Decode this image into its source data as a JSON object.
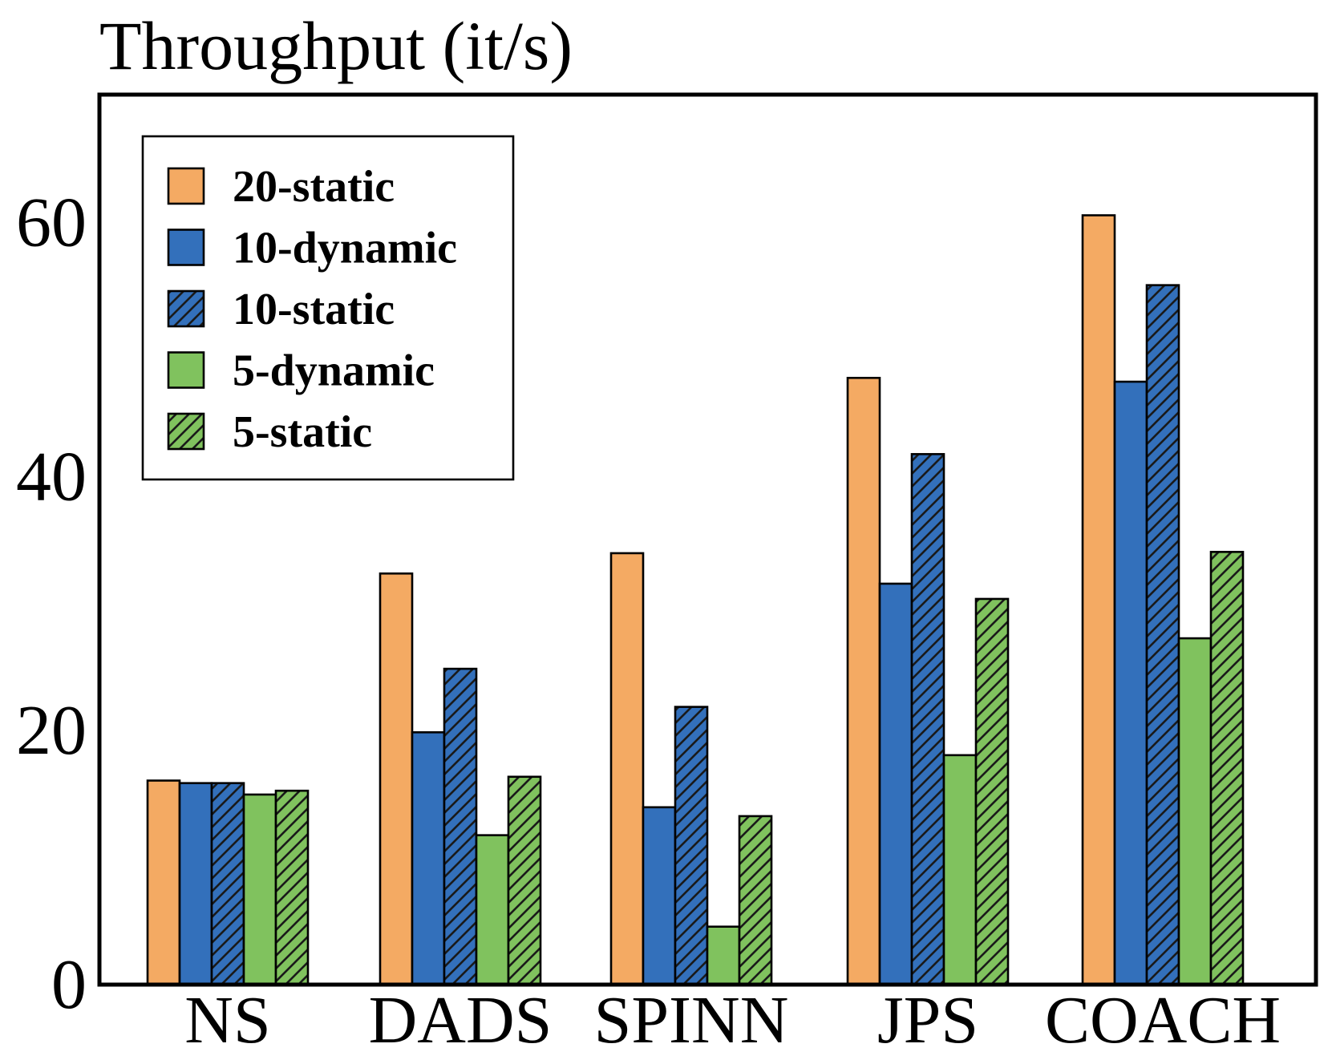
{
  "chart_data": {
    "type": "bar",
    "title": "Throughput (it/s)",
    "xlabel": "",
    "ylabel": "",
    "ylim": [
      0,
      70
    ],
    "yticks": [
      0,
      20,
      40,
      60
    ],
    "grid": false,
    "legend_position": "top-left",
    "categories": [
      "NS",
      "DADS",
      "SPINN",
      "JPS",
      "COACH"
    ],
    "series": [
      {
        "name": "20-static",
        "color": "#F4AA63",
        "hatch": false,
        "values": [
          16.0,
          32.3,
          33.9,
          47.7,
          60.5
        ]
      },
      {
        "name": "10-dynamic",
        "color": "#3370BB",
        "hatch": false,
        "values": [
          15.8,
          19.8,
          13.9,
          31.5,
          47.4
        ]
      },
      {
        "name": "10-static",
        "color": "#3370BB",
        "hatch": true,
        "values": [
          15.8,
          24.8,
          21.8,
          41.7,
          55.0
        ]
      },
      {
        "name": "5-dynamic",
        "color": "#80C25E",
        "hatch": false,
        "values": [
          14.9,
          11.7,
          4.5,
          18.0,
          27.2
        ]
      },
      {
        "name": "5-static",
        "color": "#80C25E",
        "hatch": true,
        "values": [
          15.2,
          16.3,
          13.2,
          30.3,
          34.0
        ]
      }
    ]
  }
}
